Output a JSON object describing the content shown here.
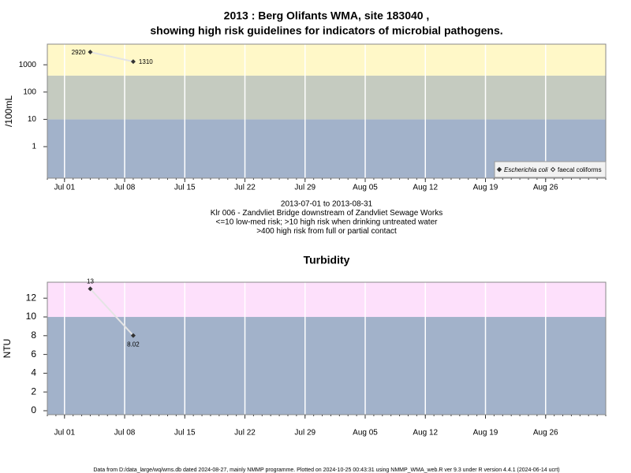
{
  "chart_data": [
    {
      "type": "line",
      "title": [
        "2013 : Berg Olifants WMA, site 183040 ,",
        "showing high risk guidelines for indicators of microbial pathogens."
      ],
      "y_label": "/100mL",
      "x": [
        "Jul 04",
        "Jul 09"
      ],
      "xlim": [
        "Jun 29",
        "Sep 02"
      ],
      "xticks": [
        "Jul 01",
        "Jul 08",
        "Jul 15",
        "Jul 22",
        "Jul 29",
        "Aug 05",
        "Aug 12",
        "Aug 19",
        "Aug 26"
      ],
      "log_y": true,
      "ylim": [
        0.07,
        5700
      ],
      "yticks": [
        1,
        10,
        100,
        1000
      ],
      "thresholds": [
        10,
        400
      ],
      "band_colors": [
        "#a2b2ca",
        "#c5cbc0",
        "#fff8c8"
      ],
      "grid": true,
      "legend": "bottom-right",
      "series": [
        {
          "name": "Escherichia coli",
          "color": "#333333",
          "values": [
            2920,
            1310
          ]
        },
        {
          "name": "faecal coliforms",
          "color": "#333333",
          "values": [
            null,
            null
          ]
        }
      ],
      "notes": [
        "2013-07-01 to 2013-08-31",
        "Klr 006 - Zandvliet Bridge downstream of Zandvliet Sewage Works",
        "<=10 low-med risk; >10 high risk when drinking untreated water",
        ">400 high risk from full or partial contact"
      ]
    },
    {
      "type": "line",
      "title": [
        "Turbidity"
      ],
      "y_label": "NTU",
      "x": [
        "Jul 04",
        "Jul 09"
      ],
      "xlim": [
        "Jun 29",
        "Sep 02"
      ],
      "xticks": [
        "Jul 01",
        "Jul 08",
        "Jul 15",
        "Jul 22",
        "Jul 29",
        "Aug 05",
        "Aug 12",
        "Aug 19",
        "Aug 26"
      ],
      "log_y": false,
      "ylim": [
        -0.42,
        13.7
      ],
      "yticks": [
        0,
        2,
        4,
        6,
        8,
        10,
        12
      ],
      "thresholds": [
        10
      ],
      "band_colors": [
        "#a2b2ca",
        "#fde0fb"
      ],
      "grid": true,
      "series": [
        {
          "name": "Turbidity",
          "color": "#333333",
          "values": [
            13,
            8.02
          ]
        }
      ]
    }
  ],
  "footer": "Data from D:/data_large/wq/wms.db dated 2024-08-27, mainly NMMP programme. Plotted on 2024-10-25 00:43:31 using NMMP_WMA_web.R ver 9.3 under R version 4.4.1 (2024-06-14 ucrt)"
}
